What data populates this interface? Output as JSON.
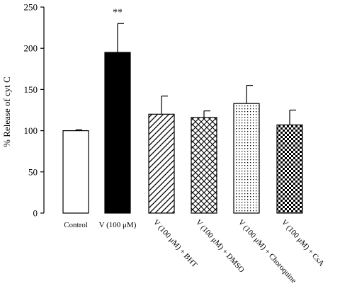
{
  "chart_data": {
    "type": "bar",
    "title": "",
    "xlabel": "",
    "ylabel": "% Release of cyt C",
    "ylim": [
      0,
      250
    ],
    "yticks": [
      0,
      50,
      100,
      150,
      200,
      250
    ],
    "grid": false,
    "legend": "none",
    "categories": [
      "Control",
      "V (100 μM)",
      "V (100 μM) + BHT",
      "V (100 μM) + DMSO",
      "V (100 μM) + Choroquine",
      "V (100 μM) + CsA"
    ],
    "values": [
      100,
      195,
      120,
      116,
      133,
      107
    ],
    "errors": [
      1,
      35,
      22,
      8,
      22,
      18
    ],
    "fills": [
      "empty",
      "solid",
      "diagonal-lines",
      "crosshatch",
      "dots",
      "checker"
    ],
    "annotations": [
      {
        "category": "V (100 μM)",
        "text": "**"
      }
    ],
    "colors": {
      "bar_edge": "#000000",
      "solid_fill": "#000000",
      "background": "#ffffff"
    }
  }
}
